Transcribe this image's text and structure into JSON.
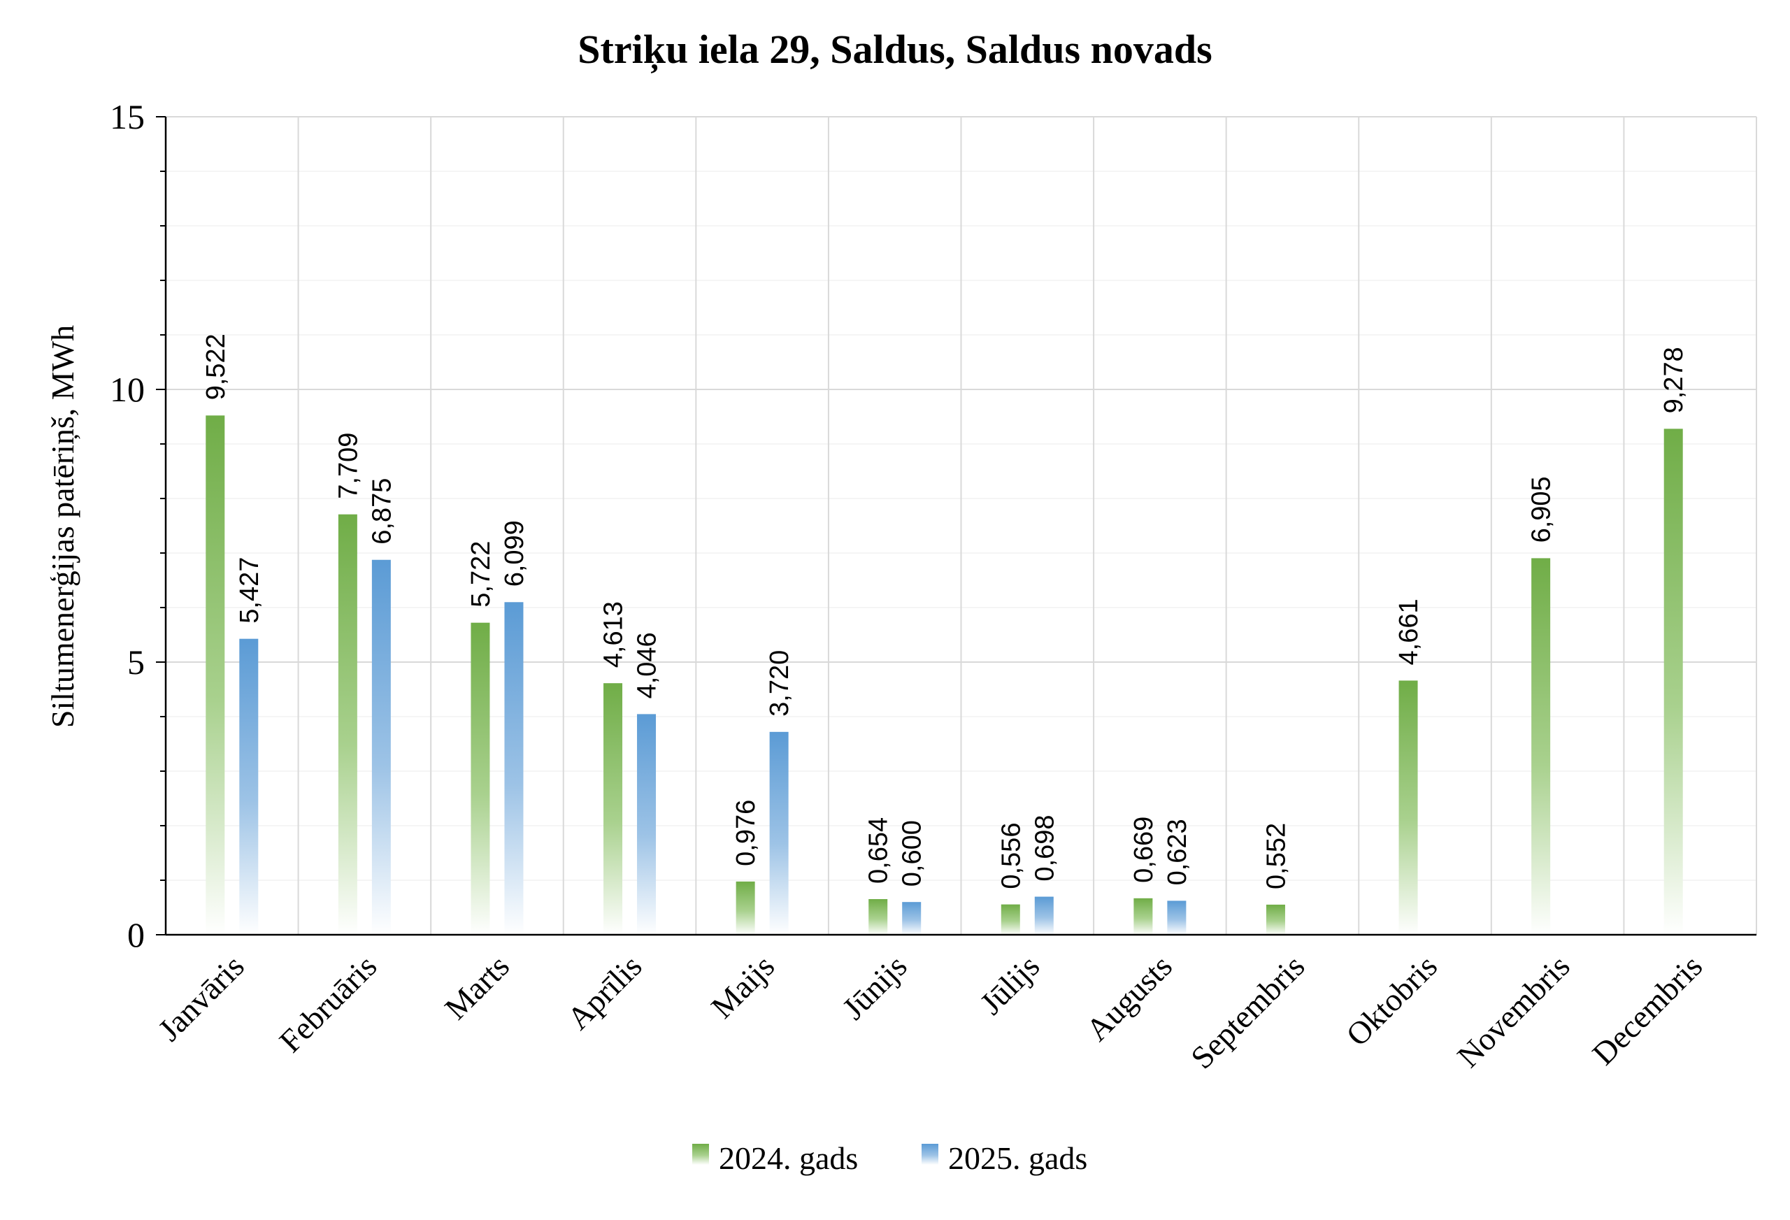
{
  "chart_data": {
    "type": "bar",
    "title": "Striķu iela 29, Saldus, Saldus novads",
    "xlabel": "",
    "ylabel": "Siltumenerģijas patēriņš, MWh",
    "ylim": [
      0,
      15
    ],
    "yticks": [
      0,
      5,
      10,
      15
    ],
    "grid": true,
    "legend": "bottom-center",
    "categories": [
      "Janvāris",
      "Februāris",
      "Marts",
      "Aprīlis",
      "Maijs",
      "Jūnijs",
      "Jūlijs",
      "Augusts",
      "Septembris",
      "Oktobris",
      "Novembris",
      "Decembris"
    ],
    "series": [
      {
        "name": "2024. gads",
        "color": "#70ad47",
        "values": [
          9.522,
          7.709,
          5.722,
          4.613,
          0.976,
          0.654,
          0.556,
          0.669,
          0.552,
          4.661,
          6.905,
          9.278
        ],
        "labels": [
          "9,522",
          "7,709",
          "5,722",
          "4,613",
          "0,976",
          "0,654",
          "0,556",
          "0,669",
          "0,552",
          "4,661",
          "6,905",
          "9,278"
        ]
      },
      {
        "name": "2025. gads",
        "color": "#5b9bd5",
        "values": [
          5.427,
          6.875,
          6.099,
          4.046,
          3.72,
          0.6,
          0.698,
          0.623,
          null,
          null,
          null,
          null
        ],
        "labels": [
          "5,427",
          "6,875",
          "6,099",
          "4,046",
          "3,720",
          "0,600",
          "0,698",
          "0,623",
          null,
          null,
          null,
          null
        ]
      }
    ]
  }
}
